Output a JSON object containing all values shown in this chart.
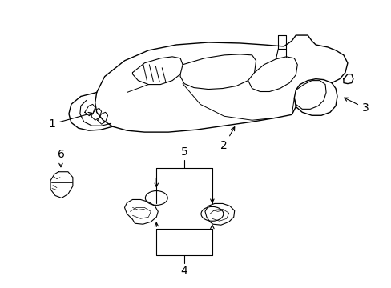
{
  "bg_color": "#ffffff",
  "line_color": "#000000",
  "label_color": "#000000",
  "label_fontsize": 10,
  "fig_width": 4.89,
  "fig_height": 3.6,
  "dpi": 100
}
